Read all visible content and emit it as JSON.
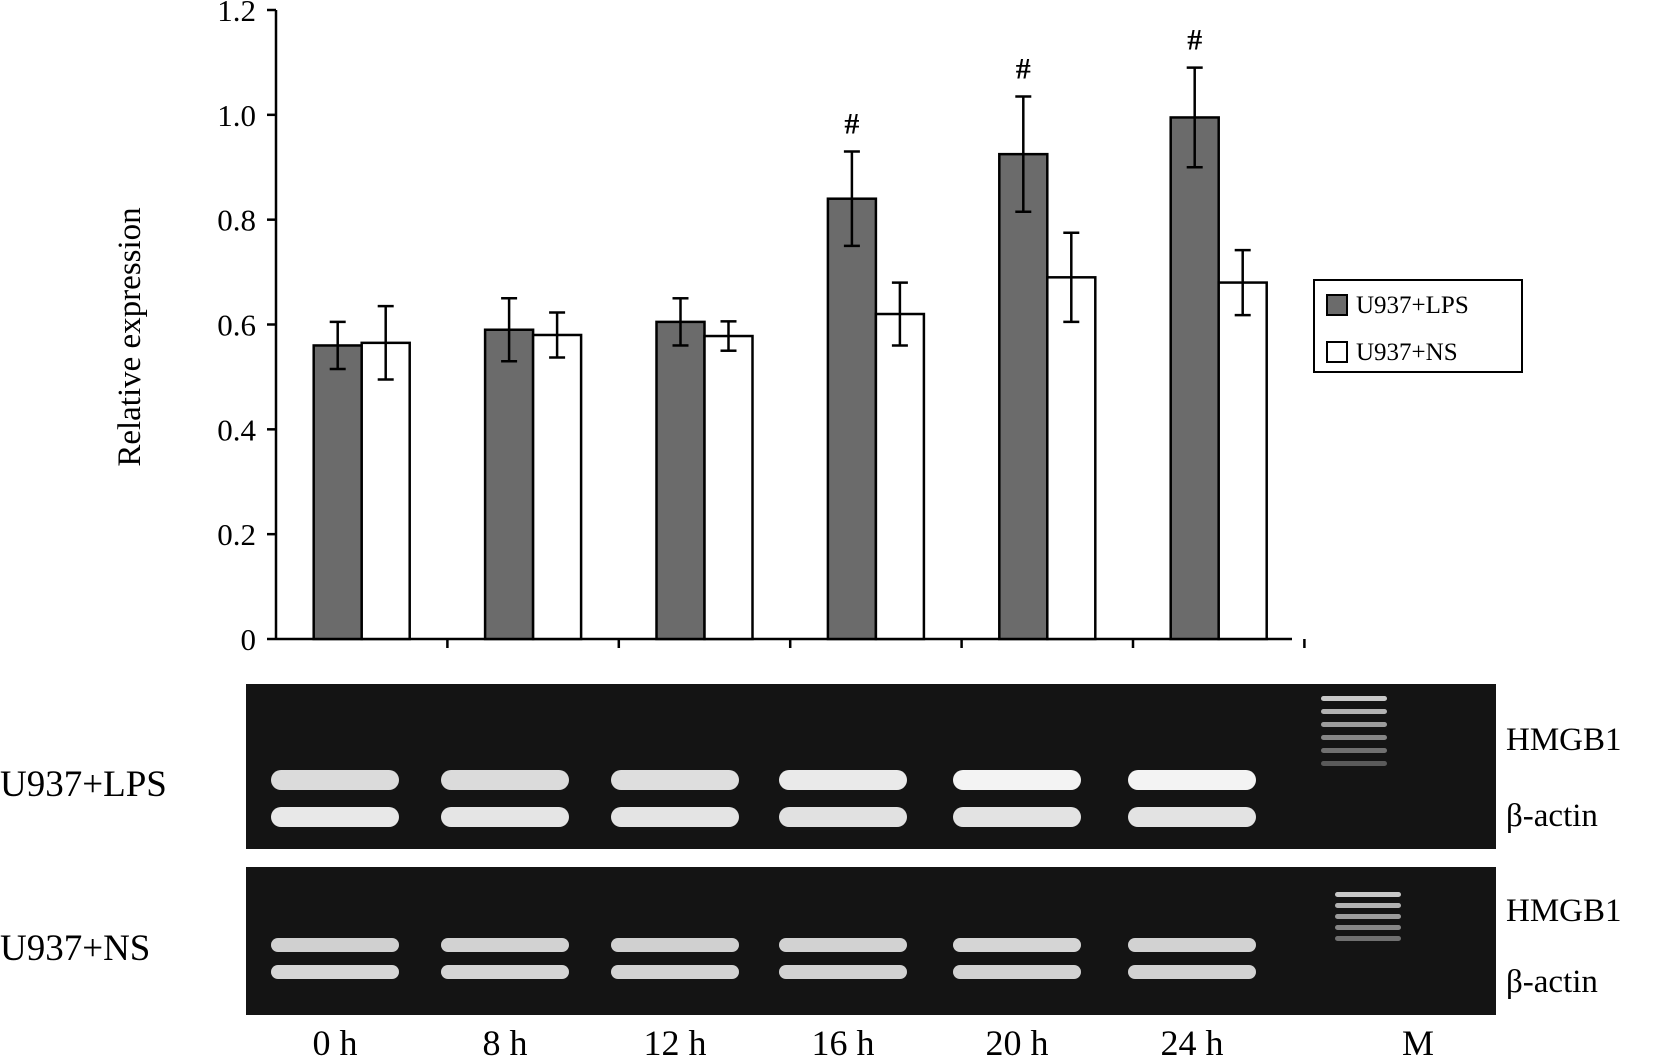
{
  "chart_data": {
    "type": "bar",
    "ylabel": "Relative expression",
    "ylim": [
      0,
      1.2
    ],
    "yticks": [
      "0",
      "0.2",
      "0.4",
      "0.6",
      "0.8",
      "1.0",
      "1.2"
    ],
    "categories": [
      "0 h",
      "8 h",
      "12 h",
      "16 h",
      "20 h",
      "24 h"
    ],
    "series": [
      {
        "name": "U937+LPS",
        "color": "#6b6b6b",
        "values": [
          0.56,
          0.59,
          0.605,
          0.84,
          0.925,
          0.995
        ],
        "errors": [
          0.045,
          0.06,
          0.045,
          0.09,
          0.11,
          0.095
        ]
      },
      {
        "name": "U937+NS",
        "color": "#ffffff",
        "values": [
          0.565,
          0.58,
          0.578,
          0.62,
          0.69,
          0.68
        ],
        "errors": [
          0.07,
          0.043,
          0.028,
          0.06,
          0.085,
          0.062
        ]
      }
    ],
    "annotations": [
      {
        "category": "16 h",
        "series": "U937+LPS",
        "text": "#"
      },
      {
        "category": "20 h",
        "series": "U937+LPS",
        "text": "#"
      },
      {
        "category": "24 h",
        "series": "U937+LPS",
        "text": "#"
      }
    ],
    "legend_position": "right"
  },
  "gels": [
    {
      "label": "U937+LPS",
      "bands": [
        "HMGB1",
        "β-actin"
      ],
      "hmgb1_intensity": [
        0.8,
        0.8,
        0.82,
        0.92,
        1.0,
        1.0
      ],
      "actin_intensity": [
        0.9,
        0.88,
        0.87,
        0.85,
        0.86,
        0.86
      ]
    },
    {
      "label": "U937+NS",
      "bands": [
        "HMGB1",
        "β-actin"
      ],
      "hmgb1_intensity": [
        0.7,
        0.72,
        0.7,
        0.72,
        0.74,
        0.72
      ],
      "actin_intensity": [
        0.75,
        0.74,
        0.73,
        0.72,
        0.72,
        0.72
      ]
    }
  ],
  "lane_labels": [
    "0 h",
    "8 h",
    "12 h",
    "16 h",
    "20 h",
    "24 h",
    "M"
  ]
}
